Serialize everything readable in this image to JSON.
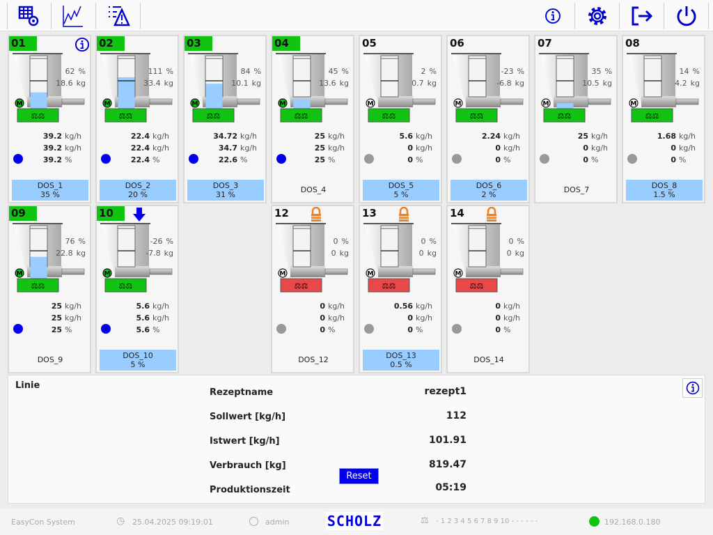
{
  "toolbar": {
    "left": [
      "recipe-table-settings-icon",
      "trend-chart-icon",
      "alarm-list-icon"
    ],
    "right": [
      "info-icon",
      "gear-icon",
      "logout-icon",
      "power-icon"
    ]
  },
  "colors": {
    "green": "#11c411",
    "red": "#e84848",
    "blue": "#0000ee",
    "lightblue": "#99ccff",
    "gray": "#999999"
  },
  "units": {
    "pct": "%",
    "kg": "kg",
    "kgh": "kg/h"
  },
  "dosers": [
    {
      "id": "01",
      "active": true,
      "top_icon": "info",
      "pct": "62",
      "kg": "18.6",
      "level": 0.62,
      "fill": "blue",
      "motor": "green",
      "scale": "green",
      "rates": [
        "39.2",
        "39.2",
        "39.2"
      ],
      "dot": "blue",
      "name": "DOS_1",
      "share": "35 %"
    },
    {
      "id": "02",
      "active": true,
      "top_icon": "",
      "pct": "111",
      "kg": "33.4",
      "level": 1.0,
      "fill": "blue",
      "motor": "green",
      "scale": "green",
      "rates": [
        "22.4",
        "22.4",
        "22.4"
      ],
      "dot": "blue",
      "name": "DOS_2",
      "share": "20 %"
    },
    {
      "id": "03",
      "active": true,
      "top_icon": "",
      "pct": "84",
      "kg": "10.1",
      "level": 0.84,
      "fill": "blue",
      "motor": "green",
      "scale": "green",
      "rates": [
        "34.72",
        "34.7",
        "22.6"
      ],
      "dot": "blue",
      "name": "DOS_3",
      "share": "31 %"
    },
    {
      "id": "04",
      "active": true,
      "top_icon": "",
      "pct": "45",
      "kg": "13.6",
      "level": 0.45,
      "fill": "blue",
      "motor": "green",
      "scale": "green",
      "rates": [
        "25",
        "25",
        "25"
      ],
      "dot": "blue",
      "name": "DOS_4",
      "share": ""
    },
    {
      "id": "05",
      "active": false,
      "top_icon": "",
      "pct": "2",
      "kg": "0.7",
      "level": 0.05,
      "fill": "red",
      "motor": "white",
      "scale": "green",
      "rates": [
        "5.6",
        "0",
        "0"
      ],
      "dot": "gray",
      "name": "DOS_5",
      "share": "5 %"
    },
    {
      "id": "06",
      "active": false,
      "top_icon": "",
      "pct": "-23",
      "kg": "-6.8",
      "level": 0.05,
      "fill": "red",
      "motor": "white",
      "scale": "green",
      "rates": [
        "2.24",
        "0",
        "0"
      ],
      "dot": "gray",
      "name": "DOS_6",
      "share": "2 %"
    },
    {
      "id": "07",
      "active": false,
      "top_icon": "",
      "pct": "35",
      "kg": "10.5",
      "level": 0.35,
      "fill": "blue",
      "motor": "white",
      "scale": "green",
      "rates": [
        "25",
        "0",
        "0"
      ],
      "dot": "gray",
      "name": "DOS_7",
      "share": ""
    },
    {
      "id": "08",
      "active": false,
      "top_icon": "",
      "pct": "14",
      "kg": "4.2",
      "level": 0.14,
      "fill": "red",
      "motor": "white",
      "scale": "green",
      "rates": [
        "1.68",
        "0",
        "0"
      ],
      "dot": "gray",
      "name": "DOS_8",
      "share": "1.5 %"
    },
    {
      "id": "09",
      "active": true,
      "top_icon": "",
      "pct": "76",
      "kg": "22.8",
      "level": 0.76,
      "fill": "blue",
      "motor": "green",
      "scale": "green",
      "rates": [
        "25",
        "25",
        "25"
      ],
      "dot": "blue",
      "name": "DOS_9",
      "share": ""
    },
    {
      "id": "10",
      "active": true,
      "top_icon": "arrow-down",
      "pct": "-26",
      "kg": "-7.8",
      "level": 0.05,
      "fill": "red",
      "motor": "green",
      "scale": "green",
      "rates": [
        "5.6",
        "5.6",
        "5.6"
      ],
      "dot": "blue",
      "name": "DOS_10",
      "share": "5 %"
    },
    {
      "id": "12",
      "active": false,
      "top_icon": "lock",
      "pct": "0",
      "kg": "0",
      "level": 0.05,
      "fill": "red",
      "motor": "white",
      "scale": "red",
      "rates": [
        "0",
        "0",
        "0"
      ],
      "dot": "gray",
      "name": "DOS_12",
      "share": ""
    },
    {
      "id": "13",
      "active": false,
      "top_icon": "lock",
      "pct": "0",
      "kg": "0",
      "level": 0.05,
      "fill": "red",
      "motor": "white",
      "scale": "red",
      "rates": [
        "0.56",
        "0",
        "0"
      ],
      "dot": "gray",
      "name": "DOS_13",
      "share": "0.5 %"
    },
    {
      "id": "14",
      "active": false,
      "top_icon": "lock",
      "pct": "0",
      "kg": "0",
      "level": 0.05,
      "fill": "red",
      "motor": "white",
      "scale": "red",
      "rates": [
        "0",
        "0",
        "0"
      ],
      "dot": "gray",
      "name": "DOS_14",
      "share": ""
    }
  ],
  "line": {
    "title": "Linie",
    "rows": [
      {
        "label": "Rezeptname",
        "value": "rezept1"
      },
      {
        "label": "Sollwert [kg/h]",
        "value": "112"
      },
      {
        "label": "Istwert [kg/h]",
        "value": "101.91"
      },
      {
        "label": "Verbrauch [kg]",
        "value": "819.47"
      },
      {
        "label": "Produktionszeit",
        "value": "05:19"
      }
    ],
    "reset_label": "Reset"
  },
  "footer": {
    "system": "EasyCon System",
    "datetime": "25.04.2025 09:19:01",
    "user": "admin",
    "logo": "SCHOLZ",
    "scales": "- 1 2 3 4 5 6 7 8 9 10 - - - - - -",
    "ip": "192.168.0.180"
  }
}
